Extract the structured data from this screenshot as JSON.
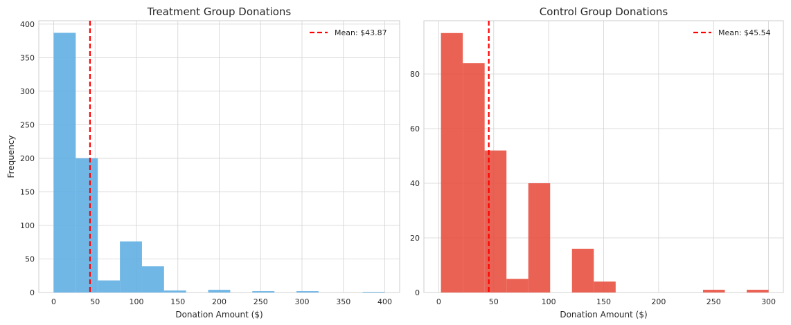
{
  "chart_data": [
    {
      "type": "bar",
      "title": "Treatment Group Donations",
      "xlabel": "Donation Amount ($)",
      "ylabel": "Frequency",
      "xlim": [
        -18,
        418
      ],
      "ylim": [
        0,
        405
      ],
      "xticks": [
        0,
        50,
        100,
        150,
        200,
        250,
        300,
        350,
        400
      ],
      "yticks": [
        0,
        50,
        100,
        150,
        200,
        250,
        300,
        350,
        400
      ],
      "grid": true,
      "legend_position": "top-right",
      "color": "#5DADE2",
      "bin_edges": [
        0,
        26.667,
        53.333,
        80,
        106.667,
        133.333,
        160,
        186.667,
        213.333,
        240,
        266.667,
        293.333,
        320,
        346.667,
        373.333,
        400
      ],
      "values": [
        387,
        200,
        18,
        76,
        39,
        3,
        0,
        4,
        0,
        2,
        0,
        2,
        0,
        0,
        1
      ],
      "mean_line": {
        "value": 43.87,
        "label": "Mean: $43.87",
        "color": "#FF0000"
      }
    },
    {
      "type": "bar",
      "title": "Control Group Donations",
      "xlabel": "Donation Amount ($)",
      "ylabel": "",
      "xlim": [
        -13.5,
        313.5
      ],
      "ylim": [
        0,
        99.5
      ],
      "xticks": [
        0,
        50,
        100,
        150,
        200,
        250,
        300
      ],
      "yticks": [
        0,
        20,
        40,
        60,
        80
      ],
      "grid": true,
      "legend_position": "top-right",
      "color": "#E74C3C",
      "bin_edges": [
        2,
        21.867,
        41.733,
        61.6,
        81.467,
        101.333,
        121.2,
        141.067,
        160.933,
        180.8,
        200.667,
        220.533,
        240.4,
        260.267,
        280.133,
        300
      ],
      "values": [
        95,
        84,
        52,
        5,
        40,
        0,
        16,
        4,
        0,
        0,
        0,
        0,
        1,
        0,
        1
      ],
      "mean_line": {
        "value": 45.54,
        "label": "Mean: $45.54",
        "color": "#FF0000"
      }
    }
  ]
}
